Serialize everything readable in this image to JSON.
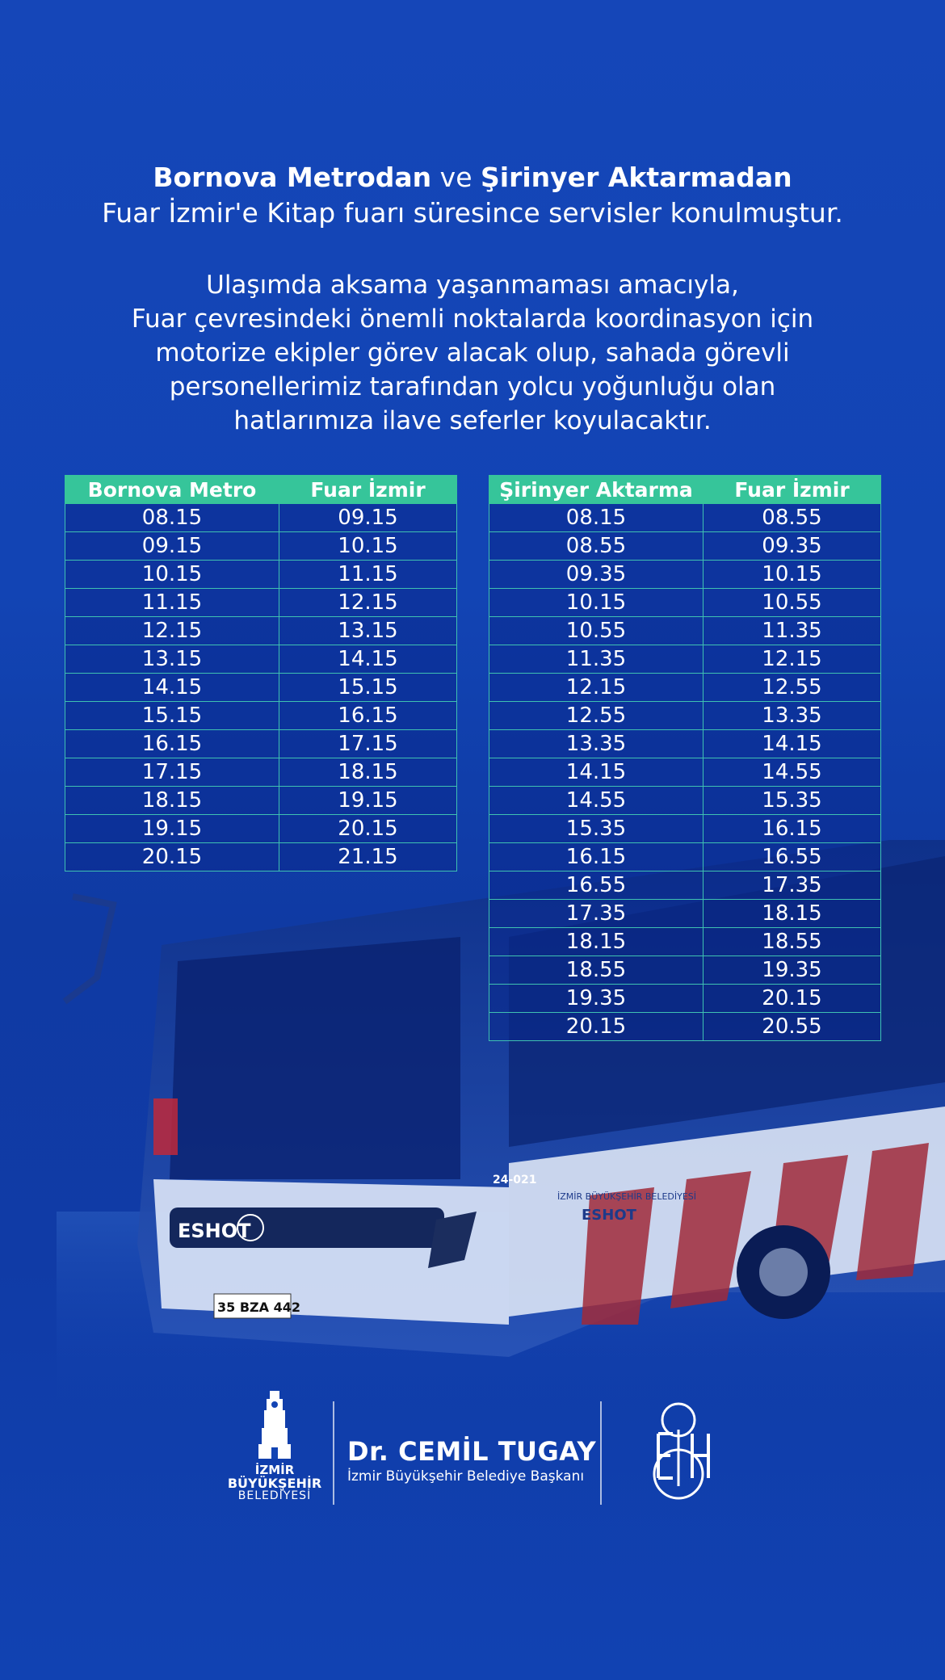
{
  "header": {
    "origin1": "Bornova Metrodan",
    "connector": "ve",
    "origin2": "Şirinyer Aktarmadan",
    "line2": "Fuar İzmir'e Kitap fuarı süresince servisler konulmuştur."
  },
  "paragraph": [
    "Ulaşımda aksama yaşanmaması amacıyla,",
    "Fuar çevresindeki önemli noktalarda koordinasyon için",
    "motorize ekipler görev alacak olup, sahada görevli",
    "personellerimiz tarafından yolcu yoğunluğu olan",
    "hatlarımıza ilave seferler koyulacaktır."
  ],
  "table_left": {
    "headers": [
      "Bornova Metro",
      "Fuar İzmir"
    ],
    "rows": [
      [
        "08.15",
        "09.15"
      ],
      [
        "09.15",
        "10.15"
      ],
      [
        "10.15",
        "11.15"
      ],
      [
        "11.15",
        "12.15"
      ],
      [
        "12.15",
        "13.15"
      ],
      [
        "13.15",
        "14.15"
      ],
      [
        "14.15",
        "15.15"
      ],
      [
        "15.15",
        "16.15"
      ],
      [
        "16.15",
        "17.15"
      ],
      [
        "17.15",
        "18.15"
      ],
      [
        "18.15",
        "19.15"
      ],
      [
        "19.15",
        "20.15"
      ],
      [
        "20.15",
        "21.15"
      ]
    ]
  },
  "table_right": {
    "headers": [
      "Şirinyer Aktarma",
      "Fuar İzmir"
    ],
    "rows": [
      [
        "08.15",
        "08.55"
      ],
      [
        "08.55",
        "09.35"
      ],
      [
        "09.35",
        "10.15"
      ],
      [
        "10.15",
        "10.55"
      ],
      [
        "10.55",
        "11.35"
      ],
      [
        "11.35",
        "12.15"
      ],
      [
        "12.15",
        "12.55"
      ],
      [
        "12.55",
        "13.35"
      ],
      [
        "13.35",
        "14.15"
      ],
      [
        "14.15",
        "14.55"
      ],
      [
        "14.55",
        "15.35"
      ],
      [
        "15.35",
        "16.15"
      ],
      [
        "16.15",
        "16.55"
      ],
      [
        "16.55",
        "17.35"
      ],
      [
        "17.35",
        "18.15"
      ],
      [
        "18.15",
        "18.55"
      ],
      [
        "18.55",
        "19.35"
      ],
      [
        "19.35",
        "20.15"
      ],
      [
        "20.15",
        "20.55"
      ]
    ]
  },
  "bus": {
    "brand": "ESHOT",
    "fleet_no": "24-021",
    "side_text": "İZMİR BÜYÜKŞEHİR BELEDİYESİ",
    "side_brand": "ESHOT",
    "plate": "35 BZA 442"
  },
  "footer": {
    "ibb_logo": [
      "İZMİR",
      "BÜYÜKŞEHİR",
      "BELEDİYESİ"
    ],
    "mayor_name": "Dr. CEMİL TUGAY",
    "mayor_title": "İzmir Büyükşehir Belediye Başkanı",
    "eshot_logo": "ESHOT"
  },
  "colors": {
    "background": "#1244b4",
    "table_header": "#36c59a",
    "table_border": "#3fc1b1"
  }
}
